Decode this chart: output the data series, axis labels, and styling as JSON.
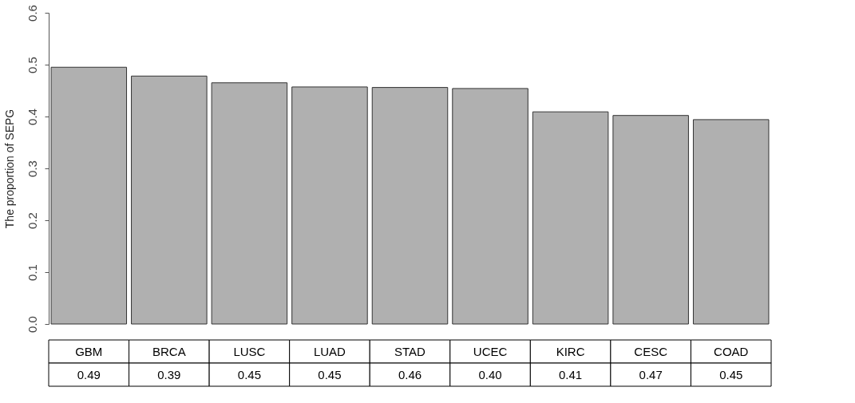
{
  "chart_data": {
    "type": "bar",
    "ylabel": "The proportion of SEPG",
    "categories": [
      "GBM",
      "BRCA",
      "LUSC",
      "LUAD",
      "STAD",
      "UCEC",
      "KIRC",
      "CESC",
      "COAD"
    ],
    "values": [
      0.495,
      0.478,
      0.465,
      0.457,
      0.456,
      0.454,
      0.409,
      0.402,
      0.394
    ],
    "annotations": [
      "0.49",
      "0.39",
      "0.45",
      "0.45",
      "0.46",
      "0.40",
      "0.41",
      "0.47",
      "0.45"
    ],
    "color": "#b0b0b0",
    "ylim": [
      0,
      0.6
    ],
    "yticks": [
      {
        "value": 0,
        "label": "0.0"
      },
      0.1,
      0.2,
      0.3,
      0.4,
      0.5,
      0.6
    ],
    "grid": false
  }
}
